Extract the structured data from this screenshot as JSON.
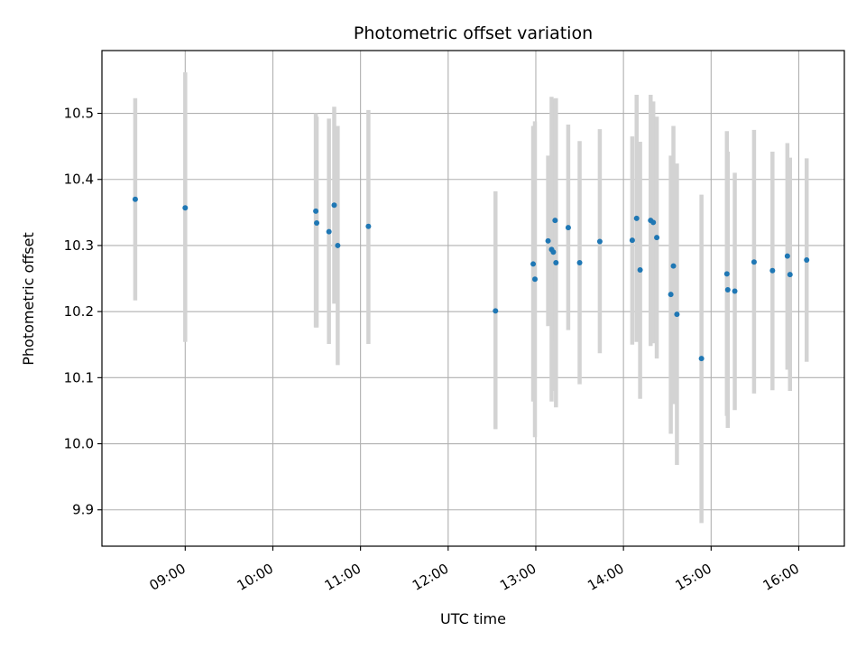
{
  "chart_data": {
    "type": "scatter",
    "title": "Photometric offset variation",
    "xlabel": "UTC time",
    "ylabel": "Photometric offset",
    "xlim_hours": [
      8.05,
      16.52
    ],
    "ylim": [
      9.845,
      10.595
    ],
    "grid": true,
    "x_ticks": [
      {
        "value": 9,
        "label": "09:00"
      },
      {
        "value": 10,
        "label": "10:00"
      },
      {
        "value": 11,
        "label": "11:00"
      },
      {
        "value": 12,
        "label": "12:00"
      },
      {
        "value": 13,
        "label": "13:00"
      },
      {
        "value": 14,
        "label": "14:00"
      },
      {
        "value": 15,
        "label": "15:00"
      },
      {
        "value": 16,
        "label": "16:00"
      }
    ],
    "y_ticks": [
      {
        "value": 9.9,
        "label": "9.9"
      },
      {
        "value": 10.0,
        "label": "10.0"
      },
      {
        "value": 10.1,
        "label": "10.1"
      },
      {
        "value": 10.2,
        "label": "10.2"
      },
      {
        "value": 10.3,
        "label": "10.3"
      },
      {
        "value": 10.4,
        "label": "10.4"
      },
      {
        "value": 10.5,
        "label": "10.5"
      }
    ],
    "colors": {
      "point": "#1f77b4",
      "errorbar": "#d3d3d3",
      "grid": "#b0b0b0"
    },
    "points": [
      {
        "x": 8.43,
        "y": 10.37,
        "lo": 10.217,
        "hi": 10.523
      },
      {
        "x": 9.0,
        "y": 10.357,
        "lo": 10.154,
        "hi": 10.562
      },
      {
        "x": 10.49,
        "y": 10.352,
        "lo": 10.176,
        "hi": 10.5
      },
      {
        "x": 10.5,
        "y": 10.334,
        "lo": 10.176,
        "hi": 10.495
      },
      {
        "x": 10.64,
        "y": 10.321,
        "lo": 10.151,
        "hi": 10.492
      },
      {
        "x": 10.7,
        "y": 10.361,
        "lo": 10.212,
        "hi": 10.51
      },
      {
        "x": 10.74,
        "y": 10.3,
        "lo": 10.119,
        "hi": 10.481
      },
      {
        "x": 11.09,
        "y": 10.329,
        "lo": 10.151,
        "hi": 10.505
      },
      {
        "x": 12.54,
        "y": 10.201,
        "lo": 10.022,
        "hi": 10.382
      },
      {
        "x": 12.97,
        "y": 10.272,
        "lo": 10.064,
        "hi": 10.481
      },
      {
        "x": 12.99,
        "y": 10.249,
        "lo": 10.01,
        "hi": 10.488
      },
      {
        "x": 13.14,
        "y": 10.307,
        "lo": 10.178,
        "hi": 10.436
      },
      {
        "x": 13.18,
        "y": 10.294,
        "lo": 10.064,
        "hi": 10.525
      },
      {
        "x": 13.2,
        "y": 10.29,
        "lo": 10.08,
        "hi": 10.5
      },
      {
        "x": 13.22,
        "y": 10.338,
        "lo": 10.155,
        "hi": 10.522
      },
      {
        "x": 13.23,
        "y": 10.274,
        "lo": 10.055,
        "hi": 10.523
      },
      {
        "x": 13.37,
        "y": 10.327,
        "lo": 10.172,
        "hi": 10.483
      },
      {
        "x": 13.5,
        "y": 10.274,
        "lo": 10.09,
        "hi": 10.458
      },
      {
        "x": 13.73,
        "y": 10.306,
        "lo": 10.137,
        "hi": 10.476
      },
      {
        "x": 14.1,
        "y": 10.308,
        "lo": 10.15,
        "hi": 10.465
      },
      {
        "x": 14.15,
        "y": 10.341,
        "lo": 10.154,
        "hi": 10.528
      },
      {
        "x": 14.19,
        "y": 10.263,
        "lo": 10.068,
        "hi": 10.457
      },
      {
        "x": 14.31,
        "y": 10.338,
        "lo": 10.148,
        "hi": 10.528
      },
      {
        "x": 14.34,
        "y": 10.335,
        "lo": 10.152,
        "hi": 10.518
      },
      {
        "x": 14.38,
        "y": 10.312,
        "lo": 10.129,
        "hi": 10.495
      },
      {
        "x": 14.54,
        "y": 10.226,
        "lo": 10.015,
        "hi": 10.436
      },
      {
        "x": 14.57,
        "y": 10.269,
        "lo": 10.06,
        "hi": 10.481
      },
      {
        "x": 14.61,
        "y": 10.196,
        "lo": 9.968,
        "hi": 10.424
      },
      {
        "x": 14.89,
        "y": 10.129,
        "lo": 9.88,
        "hi": 10.377
      },
      {
        "x": 15.18,
        "y": 10.257,
        "lo": 10.042,
        "hi": 10.473
      },
      {
        "x": 15.19,
        "y": 10.233,
        "lo": 10.024,
        "hi": 10.442
      },
      {
        "x": 15.27,
        "y": 10.231,
        "lo": 10.051,
        "hi": 10.41
      },
      {
        "x": 15.49,
        "y": 10.275,
        "lo": 10.076,
        "hi": 10.475
      },
      {
        "x": 15.7,
        "y": 10.262,
        "lo": 10.081,
        "hi": 10.442
      },
      {
        "x": 15.87,
        "y": 10.284,
        "lo": 10.112,
        "hi": 10.455
      },
      {
        "x": 15.9,
        "y": 10.256,
        "lo": 10.08,
        "hi": 10.433
      },
      {
        "x": 16.09,
        "y": 10.278,
        "lo": 10.124,
        "hi": 10.432
      }
    ]
  }
}
